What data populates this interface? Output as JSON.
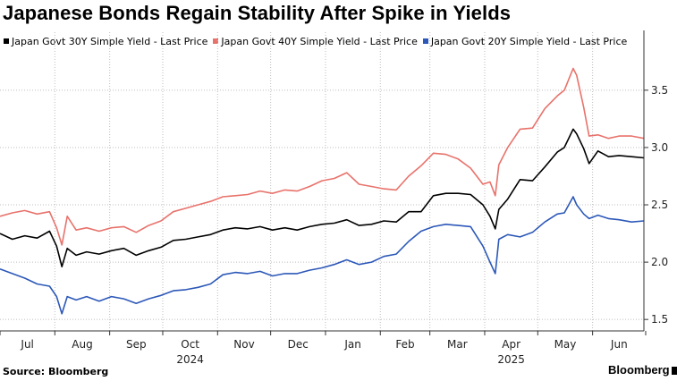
{
  "title": "Japanese Bonds Regain Stability After Spike in Yields",
  "source": "Source: Bloomberg",
  "brand": "Bloomberg",
  "chart_data": {
    "type": "line",
    "title": "Japanese Bonds Regain Stability After Spike in Yields",
    "xlabel": "",
    "ylabel": "",
    "ylim": [
      1.4,
      3.85
    ],
    "y_ticks": [
      1.5,
      2.0,
      2.5,
      3.0,
      3.5
    ],
    "y_tick_labels": [
      "1.5",
      "2.0",
      "2.5",
      "3.0",
      "3.5"
    ],
    "x_range": [
      "2024-07-01",
      "2025-06-30"
    ],
    "month_labels": [
      "Jul",
      "Aug",
      "Sep",
      "Oct",
      "Nov",
      "Dec",
      "Jan",
      "Feb",
      "Mar",
      "Apr",
      "May",
      "Jun"
    ],
    "year_labels": [
      {
        "text": "2024",
        "month": 3
      },
      {
        "text": "2025",
        "month": 9
      }
    ],
    "grid": true,
    "y_axis_side": "right",
    "legend_position": "top-left",
    "series": [
      {
        "name": "Japan Govt 30Y Simple Yield - Last Price",
        "color": "#000000",
        "points": [
          [
            "2024-07-01",
            2.25
          ],
          [
            "2024-07-08",
            2.2
          ],
          [
            "2024-07-15",
            2.23
          ],
          [
            "2024-07-22",
            2.21
          ],
          [
            "2024-07-29",
            2.27
          ],
          [
            "2024-08-02",
            2.14
          ],
          [
            "2024-08-05",
            1.96
          ],
          [
            "2024-08-08",
            2.12
          ],
          [
            "2024-08-13",
            2.06
          ],
          [
            "2024-08-19",
            2.09
          ],
          [
            "2024-08-26",
            2.07
          ],
          [
            "2024-09-02",
            2.1
          ],
          [
            "2024-09-09",
            2.12
          ],
          [
            "2024-09-16",
            2.06
          ],
          [
            "2024-09-23",
            2.1
          ],
          [
            "2024-09-30",
            2.13
          ],
          [
            "2024-10-07",
            2.19
          ],
          [
            "2024-10-14",
            2.2
          ],
          [
            "2024-10-21",
            2.22
          ],
          [
            "2024-10-28",
            2.24
          ],
          [
            "2024-11-04",
            2.28
          ],
          [
            "2024-11-11",
            2.3
          ],
          [
            "2024-11-18",
            2.29
          ],
          [
            "2024-11-25",
            2.31
          ],
          [
            "2024-12-02",
            2.28
          ],
          [
            "2024-12-09",
            2.3
          ],
          [
            "2024-12-16",
            2.28
          ],
          [
            "2024-12-23",
            2.31
          ],
          [
            "2024-12-30",
            2.33
          ],
          [
            "2025-01-06",
            2.34
          ],
          [
            "2025-01-13",
            2.37
          ],
          [
            "2025-01-20",
            2.32
          ],
          [
            "2025-01-27",
            2.33
          ],
          [
            "2025-02-03",
            2.36
          ],
          [
            "2025-02-10",
            2.35
          ],
          [
            "2025-02-17",
            2.44
          ],
          [
            "2025-02-24",
            2.44
          ],
          [
            "2025-03-03",
            2.58
          ],
          [
            "2025-03-10",
            2.6
          ],
          [
            "2025-03-17",
            2.6
          ],
          [
            "2025-03-24",
            2.59
          ],
          [
            "2025-03-31",
            2.5
          ],
          [
            "2025-04-04",
            2.4
          ],
          [
            "2025-04-07",
            2.29
          ],
          [
            "2025-04-09",
            2.46
          ],
          [
            "2025-04-14",
            2.55
          ],
          [
            "2025-04-21",
            2.72
          ],
          [
            "2025-04-28",
            2.71
          ],
          [
            "2025-05-05",
            2.83
          ],
          [
            "2025-05-12",
            2.96
          ],
          [
            "2025-05-16",
            3.0
          ],
          [
            "2025-05-21",
            3.16
          ],
          [
            "2025-05-23",
            3.12
          ],
          [
            "2025-05-27",
            2.99
          ],
          [
            "2025-05-30",
            2.86
          ],
          [
            "2025-06-04",
            2.97
          ],
          [
            "2025-06-10",
            2.92
          ],
          [
            "2025-06-16",
            2.93
          ],
          [
            "2025-06-23",
            2.92
          ],
          [
            "2025-06-30",
            2.91
          ]
        ]
      },
      {
        "name": "Japan Govt 40Y Simple Yield - Last Price",
        "color": "#e8726b",
        "points": [
          [
            "2024-07-01",
            2.4
          ],
          [
            "2024-07-08",
            2.43
          ],
          [
            "2024-07-15",
            2.45
          ],
          [
            "2024-07-22",
            2.42
          ],
          [
            "2024-07-29",
            2.44
          ],
          [
            "2024-08-02",
            2.3
          ],
          [
            "2024-08-05",
            2.15
          ],
          [
            "2024-08-08",
            2.4
          ],
          [
            "2024-08-13",
            2.28
          ],
          [
            "2024-08-19",
            2.3
          ],
          [
            "2024-08-26",
            2.27
          ],
          [
            "2024-09-02",
            2.3
          ],
          [
            "2024-09-09",
            2.31
          ],
          [
            "2024-09-16",
            2.26
          ],
          [
            "2024-09-23",
            2.32
          ],
          [
            "2024-09-30",
            2.36
          ],
          [
            "2024-10-07",
            2.44
          ],
          [
            "2024-10-14",
            2.47
          ],
          [
            "2024-10-21",
            2.5
          ],
          [
            "2024-10-28",
            2.53
          ],
          [
            "2024-11-04",
            2.57
          ],
          [
            "2024-11-11",
            2.58
          ],
          [
            "2024-11-18",
            2.59
          ],
          [
            "2024-11-25",
            2.62
          ],
          [
            "2024-12-02",
            2.6
          ],
          [
            "2024-12-09",
            2.63
          ],
          [
            "2024-12-16",
            2.62
          ],
          [
            "2024-12-23",
            2.66
          ],
          [
            "2024-12-30",
            2.71
          ],
          [
            "2025-01-06",
            2.73
          ],
          [
            "2025-01-13",
            2.78
          ],
          [
            "2025-01-20",
            2.68
          ],
          [
            "2025-01-27",
            2.66
          ],
          [
            "2025-02-03",
            2.64
          ],
          [
            "2025-02-10",
            2.63
          ],
          [
            "2025-02-17",
            2.75
          ],
          [
            "2025-02-24",
            2.84
          ],
          [
            "2025-03-03",
            2.95
          ],
          [
            "2025-03-10",
            2.94
          ],
          [
            "2025-03-17",
            2.9
          ],
          [
            "2025-03-24",
            2.82
          ],
          [
            "2025-03-31",
            2.68
          ],
          [
            "2025-04-04",
            2.7
          ],
          [
            "2025-04-07",
            2.58
          ],
          [
            "2025-04-09",
            2.85
          ],
          [
            "2025-04-14",
            3.0
          ],
          [
            "2025-04-21",
            3.16
          ],
          [
            "2025-04-28",
            3.17
          ],
          [
            "2025-05-05",
            3.34
          ],
          [
            "2025-05-12",
            3.45
          ],
          [
            "2025-05-16",
            3.5
          ],
          [
            "2025-05-21",
            3.69
          ],
          [
            "2025-05-23",
            3.63
          ],
          [
            "2025-05-27",
            3.35
          ],
          [
            "2025-05-30",
            3.1
          ],
          [
            "2025-06-04",
            3.11
          ],
          [
            "2025-06-10",
            3.08
          ],
          [
            "2025-06-16",
            3.1
          ],
          [
            "2025-06-23",
            3.1
          ],
          [
            "2025-06-30",
            3.08
          ]
        ]
      },
      {
        "name": "Japan Govt 20Y Simple Yield - Last Price",
        "color": "#2c58b8",
        "points": [
          [
            "2024-07-01",
            1.94
          ],
          [
            "2024-07-08",
            1.9
          ],
          [
            "2024-07-15",
            1.86
          ],
          [
            "2024-07-22",
            1.81
          ],
          [
            "2024-07-29",
            1.79
          ],
          [
            "2024-08-02",
            1.7
          ],
          [
            "2024-08-05",
            1.55
          ],
          [
            "2024-08-08",
            1.7
          ],
          [
            "2024-08-13",
            1.67
          ],
          [
            "2024-08-19",
            1.7
          ],
          [
            "2024-08-26",
            1.66
          ],
          [
            "2024-09-02",
            1.7
          ],
          [
            "2024-09-09",
            1.68
          ],
          [
            "2024-09-16",
            1.64
          ],
          [
            "2024-09-23",
            1.68
          ],
          [
            "2024-09-30",
            1.71
          ],
          [
            "2024-10-07",
            1.75
          ],
          [
            "2024-10-14",
            1.76
          ],
          [
            "2024-10-21",
            1.78
          ],
          [
            "2024-10-28",
            1.81
          ],
          [
            "2024-11-04",
            1.89
          ],
          [
            "2024-11-11",
            1.91
          ],
          [
            "2024-11-18",
            1.9
          ],
          [
            "2024-11-25",
            1.92
          ],
          [
            "2024-12-02",
            1.88
          ],
          [
            "2024-12-09",
            1.9
          ],
          [
            "2024-12-16",
            1.9
          ],
          [
            "2024-12-23",
            1.93
          ],
          [
            "2024-12-30",
            1.95
          ],
          [
            "2025-01-06",
            1.98
          ],
          [
            "2025-01-13",
            2.02
          ],
          [
            "2025-01-20",
            1.98
          ],
          [
            "2025-01-27",
            2.0
          ],
          [
            "2025-02-03",
            2.05
          ],
          [
            "2025-02-10",
            2.07
          ],
          [
            "2025-02-17",
            2.18
          ],
          [
            "2025-02-24",
            2.27
          ],
          [
            "2025-03-03",
            2.31
          ],
          [
            "2025-03-10",
            2.33
          ],
          [
            "2025-03-17",
            2.32
          ],
          [
            "2025-03-24",
            2.31
          ],
          [
            "2025-03-31",
            2.14
          ],
          [
            "2025-04-04",
            2.0
          ],
          [
            "2025-04-07",
            1.9
          ],
          [
            "2025-04-09",
            2.2
          ],
          [
            "2025-04-14",
            2.24
          ],
          [
            "2025-04-21",
            2.22
          ],
          [
            "2025-04-28",
            2.26
          ],
          [
            "2025-05-05",
            2.35
          ],
          [
            "2025-05-12",
            2.42
          ],
          [
            "2025-05-16",
            2.43
          ],
          [
            "2025-05-21",
            2.57
          ],
          [
            "2025-05-23",
            2.5
          ],
          [
            "2025-05-27",
            2.42
          ],
          [
            "2025-05-30",
            2.38
          ],
          [
            "2025-06-04",
            2.41
          ],
          [
            "2025-06-10",
            2.38
          ],
          [
            "2025-06-16",
            2.37
          ],
          [
            "2025-06-23",
            2.35
          ],
          [
            "2025-06-30",
            2.36
          ]
        ]
      }
    ]
  }
}
